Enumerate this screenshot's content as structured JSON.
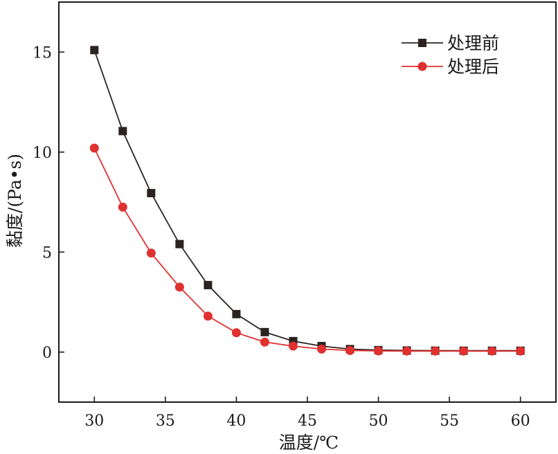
{
  "chart_data": {
    "type": "line",
    "xlabel": "温度/℃",
    "ylabel": "黏度/(Pa•s)",
    "xlim": [
      27.5,
      62.5
    ],
    "ylim": [
      -2.5,
      17.5
    ],
    "x_ticks": [
      30,
      35,
      40,
      45,
      50,
      55,
      60
    ],
    "y_ticks": [
      0,
      5,
      10,
      15
    ],
    "legend_position": "top-right",
    "grid": false,
    "series": [
      {
        "name": "处理前",
        "color": "#2b2321",
        "marker": "square",
        "x": [
          30,
          32,
          34,
          36,
          38,
          40,
          42,
          44,
          46,
          48,
          50,
          52,
          54,
          56,
          58,
          60
        ],
        "y": [
          15.1,
          11.05,
          7.95,
          5.4,
          3.35,
          1.9,
          1.0,
          0.55,
          0.3,
          0.15,
          0.1,
          0.08,
          0.07,
          0.07,
          0.07,
          0.07
        ]
      },
      {
        "name": "处理后",
        "color": "#e03030",
        "marker": "circle",
        "x": [
          30,
          32,
          34,
          36,
          38,
          40,
          42,
          44,
          46,
          48,
          50,
          52,
          54,
          56,
          58,
          60
        ],
        "y": [
          10.2,
          7.25,
          4.95,
          3.25,
          1.8,
          0.97,
          0.5,
          0.3,
          0.15,
          0.08,
          0.06,
          0.05,
          0.05,
          0.05,
          0.05,
          0.05
        ]
      }
    ]
  }
}
